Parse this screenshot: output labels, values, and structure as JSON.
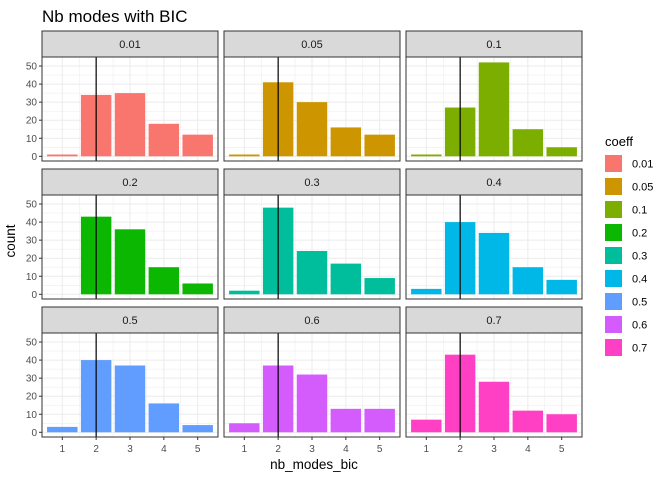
{
  "chart_data": {
    "type": "bar",
    "title": "Nb modes with BIC",
    "xlabel": "nb_modes_bic",
    "ylabel": "count",
    "categories": [
      "1",
      "2",
      "3",
      "4",
      "5"
    ],
    "yticks": [
      0,
      10,
      20,
      30,
      40,
      50
    ],
    "ylim": [
      -2.6,
      55
    ],
    "xlim": [
      0.4,
      5.6
    ],
    "grid": true,
    "facet_columns": 3,
    "reference_line_x": 2,
    "legend": {
      "title": "coeff",
      "position": "right"
    },
    "series": [
      {
        "name": "0.01",
        "color": "#F8766D",
        "values": [
          1,
          34,
          35,
          18,
          12
        ]
      },
      {
        "name": "0.05",
        "color": "#CD9600",
        "values": [
          1,
          41,
          30,
          16,
          12
        ]
      },
      {
        "name": "0.1",
        "color": "#7CAE00",
        "values": [
          1,
          27,
          52,
          15,
          5
        ]
      },
      {
        "name": "0.2",
        "color": "#0CB702",
        "values": [
          0,
          43,
          36,
          15,
          6
        ]
      },
      {
        "name": "0.3",
        "color": "#00BE9B",
        "values": [
          2,
          48,
          24,
          17,
          9
        ]
      },
      {
        "name": "0.4",
        "color": "#00B8E7",
        "values": [
          3,
          40,
          34,
          15,
          8
        ]
      },
      {
        "name": "0.5",
        "color": "#619CFF",
        "values": [
          3,
          40,
          37,
          16,
          4
        ]
      },
      {
        "name": "0.6",
        "color": "#D55CFC",
        "values": [
          5,
          37,
          32,
          13,
          13
        ]
      },
      {
        "name": "0.7",
        "color": "#FF40C4",
        "values": [
          7,
          43,
          28,
          12,
          10
        ]
      }
    ]
  }
}
